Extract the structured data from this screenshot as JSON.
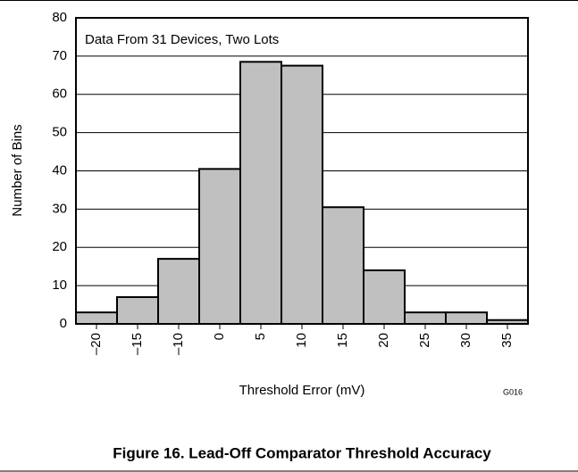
{
  "chart_data": {
    "type": "bar",
    "title": "Figure 16. Lead-Off Comparator Threshold Accuracy",
    "annotation": "Data From 31 Devices, Two Lots",
    "figure_code": "G016",
    "x_label": "Threshold Error (mV)",
    "y_label": "Number of Bins",
    "categories": [
      "–20",
      "–15",
      "–10",
      "0",
      "5",
      "10",
      "15",
      "20",
      "25",
      "30",
      "35"
    ],
    "values": [
      3,
      7,
      17,
      40.5,
      68.5,
      67.5,
      30.5,
      14,
      3,
      3,
      1
    ],
    "color": "#c0c0c0",
    "ylim": [
      0,
      80
    ],
    "yticks": [
      0,
      10,
      20,
      30,
      40,
      50,
      60,
      70,
      80
    ],
    "grid": true
  }
}
